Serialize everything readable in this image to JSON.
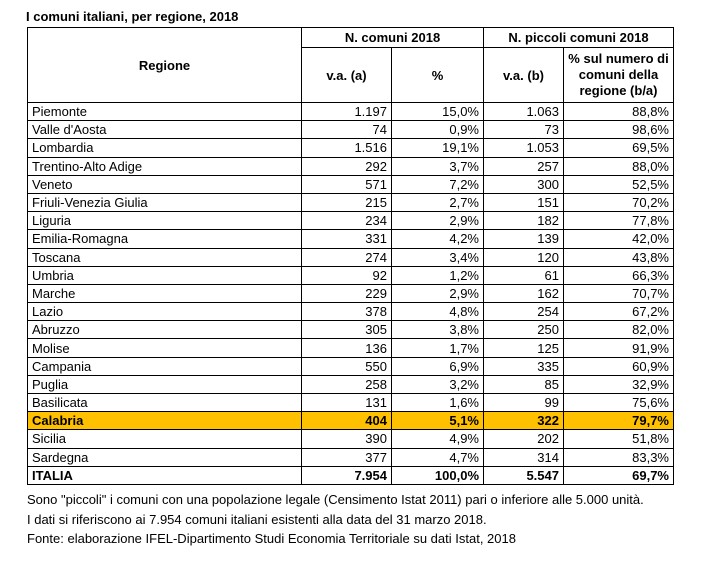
{
  "title": "I comuni italiani, per regione, 2018",
  "headers": {
    "regione": "Regione",
    "group1": "N. comuni 2018",
    "group2": "N. piccoli comuni 2018",
    "va_a": "v.a. (a)",
    "pct": "%",
    "va_b": "v.a. (b)",
    "pct_b": "% sul numero di comuni della regione (b/a)"
  },
  "rows": [
    {
      "region": "Piemonte",
      "va_a": "1.197",
      "pct": "15,0%",
      "va_b": "1.063",
      "pct_b": "88,8%"
    },
    {
      "region": "Valle d'Aosta",
      "va_a": "74",
      "pct": "0,9%",
      "va_b": "73",
      "pct_b": "98,6%"
    },
    {
      "region": "Lombardia",
      "va_a": "1.516",
      "pct": "19,1%",
      "va_b": "1.053",
      "pct_b": "69,5%"
    },
    {
      "region": "Trentino-Alto Adige",
      "va_a": "292",
      "pct": "3,7%",
      "va_b": "257",
      "pct_b": "88,0%"
    },
    {
      "region": "Veneto",
      "va_a": "571",
      "pct": "7,2%",
      "va_b": "300",
      "pct_b": "52,5%"
    },
    {
      "region": "Friuli-Venezia Giulia",
      "va_a": "215",
      "pct": "2,7%",
      "va_b": "151",
      "pct_b": "70,2%"
    },
    {
      "region": "Liguria",
      "va_a": "234",
      "pct": "2,9%",
      "va_b": "182",
      "pct_b": "77,8%"
    },
    {
      "region": "Emilia-Romagna",
      "va_a": "331",
      "pct": "4,2%",
      "va_b": "139",
      "pct_b": "42,0%"
    },
    {
      "region": "Toscana",
      "va_a": "274",
      "pct": "3,4%",
      "va_b": "120",
      "pct_b": "43,8%"
    },
    {
      "region": "Umbria",
      "va_a": "92",
      "pct": "1,2%",
      "va_b": "61",
      "pct_b": "66,3%"
    },
    {
      "region": "Marche",
      "va_a": "229",
      "pct": "2,9%",
      "va_b": "162",
      "pct_b": "70,7%"
    },
    {
      "region": "Lazio",
      "va_a": "378",
      "pct": "4,8%",
      "va_b": "254",
      "pct_b": "67,2%"
    },
    {
      "region": "Abruzzo",
      "va_a": "305",
      "pct": "3,8%",
      "va_b": "250",
      "pct_b": "82,0%"
    },
    {
      "region": "Molise",
      "va_a": "136",
      "pct": "1,7%",
      "va_b": "125",
      "pct_b": "91,9%"
    },
    {
      "region": "Campania",
      "va_a": "550",
      "pct": "6,9%",
      "va_b": "335",
      "pct_b": "60,9%"
    },
    {
      "region": "Puglia",
      "va_a": "258",
      "pct": "3,2%",
      "va_b": "85",
      "pct_b": "32,9%"
    },
    {
      "region": "Basilicata",
      "va_a": "131",
      "pct": "1,6%",
      "va_b": "99",
      "pct_b": "75,6%"
    },
    {
      "region": "Calabria",
      "va_a": "404",
      "pct": "5,1%",
      "va_b": "322",
      "pct_b": "79,7%",
      "highlight": true
    },
    {
      "region": "Sicilia",
      "va_a": "390",
      "pct": "4,9%",
      "va_b": "202",
      "pct_b": "51,8%"
    },
    {
      "region": "Sardegna",
      "va_a": "377",
      "pct": "4,7%",
      "va_b": "314",
      "pct_b": "83,3%"
    }
  ],
  "total": {
    "region": "ITALIA",
    "va_a": "7.954",
    "pct": "100,0%",
    "va_b": "5.547",
    "pct_b": "69,7%"
  },
  "notes": [
    "Sono \"piccoli\" i comuni con una popolazione legale (Censimento Istat 2011) pari o inferiore alle 5.000 unità.",
    "I dati si riferiscono ai 7.954 comuni italiani esistenti alla data del 31 marzo 2018.",
    "Fonte: elaborazione IFEL-Dipartimento Studi Economia Territoriale su dati Istat, 2018"
  ],
  "colors": {
    "highlight_row": "#ffc000",
    "border": "#000000"
  }
}
